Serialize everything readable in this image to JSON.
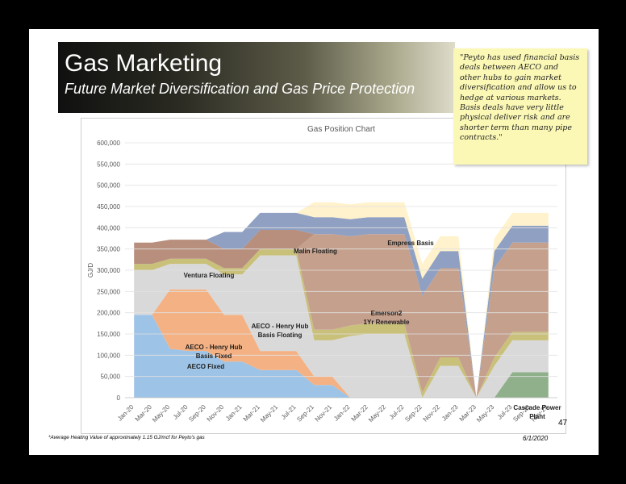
{
  "slide": {
    "title": "Gas Marketing",
    "subtitle": "Future Market Diversification and Gas Price Protection",
    "note": "\"Peyto has used financial basis deals between AECO and other hubs to gain market diversification and allow us to hedge at various markets. Basis deals have very little physical deliver risk and are shorter term than many pipe contracts.\"",
    "page_number": "47",
    "footnote": "*Average Heating Value of approximately 1.15 GJ/mcf for Peyto's gas",
    "date": "6/1/2020"
  },
  "chart_data": {
    "type": "area",
    "title": "Gas Position Chart",
    "ylabel": "GJ/D",
    "xlabel": "",
    "ylim": [
      0,
      600000
    ],
    "yticks": [
      0,
      50000,
      100000,
      150000,
      200000,
      250000,
      300000,
      350000,
      400000,
      450000,
      500000,
      550000,
      600000
    ],
    "ytick_labels": [
      "0",
      "50,000",
      "100,000",
      "150,000",
      "200,000",
      "250,000",
      "300,000",
      "350,000",
      "400,000",
      "450,000",
      "500,000",
      "550,000",
      "600,000"
    ],
    "x": [
      "Jan-20",
      "Mar-20",
      "May-20",
      "Jul-20",
      "Sep-20",
      "Nov-20",
      "Jan-21",
      "Mar-21",
      "May-21",
      "Jul-21",
      "Sep-21",
      "Nov-21",
      "Jan-22",
      "Mar-22",
      "May-22",
      "Jul-22",
      "Sep-22",
      "Nov-22",
      "Jan-23",
      "Mar-23",
      "May-23",
      "Jul-23",
      "Sep-23",
      "Nov-23"
    ],
    "stacked": true,
    "grid": true,
    "legend": "none",
    "series": [
      {
        "name": "AECO Fixed",
        "color": "#9dc3e6",
        "values": [
          195000,
          195000,
          115000,
          110000,
          110000,
          85000,
          85000,
          65000,
          65000,
          65000,
          30000,
          30000,
          0,
          0,
          0,
          0,
          0,
          0,
          0,
          0,
          0,
          0,
          0,
          0
        ]
      },
      {
        "name": "AECO - Henry Hub Basis Fixed",
        "color": "#f4b183",
        "values": [
          0,
          0,
          140000,
          145000,
          145000,
          110000,
          110000,
          45000,
          45000,
          45000,
          20000,
          20000,
          0,
          0,
          0,
          0,
          0,
          0,
          0,
          0,
          0,
          0,
          0,
          0
        ]
      },
      {
        "name": "Cascade Power Plant",
        "color": "#8fb08a",
        "values": [
          0,
          0,
          0,
          0,
          0,
          0,
          0,
          0,
          0,
          0,
          0,
          0,
          0,
          0,
          0,
          0,
          0,
          0,
          0,
          0,
          0,
          60000,
          60000,
          60000
        ]
      },
      {
        "name": "AECO - Henry Hub Basis Floating",
        "color": "#d9d9d9",
        "values": [
          105000,
          105000,
          60000,
          60000,
          60000,
          95000,
          95000,
          225000,
          225000,
          225000,
          85000,
          85000,
          145000,
          150000,
          150000,
          150000,
          0,
          75000,
          75000,
          0,
          75000,
          75000,
          75000,
          75000
        ]
      },
      {
        "name": "",
        "color": "#c9c07a",
        "values": [
          15000,
          15000,
          12000,
          12000,
          12000,
          15000,
          15000,
          15000,
          15000,
          15000,
          25000,
          25000,
          25000,
          25000,
          25000,
          25000,
          12000,
          20000,
          20000,
          0,
          20000,
          20000,
          20000,
          20000
        ]
      },
      {
        "name": "Emerson2 1Yr Renewable",
        "color": "#c5a08d",
        "values": [
          0,
          0,
          0,
          0,
          0,
          0,
          0,
          0,
          0,
          0,
          225000,
          225000,
          210000,
          210000,
          210000,
          210000,
          228000,
          210000,
          210000,
          0,
          210000,
          210000,
          210000,
          210000
        ]
      },
      {
        "name": "Ventura Floating",
        "color": "#b88e7c",
        "values": [
          50000,
          50000,
          45000,
          45000,
          45000,
          45000,
          45000,
          45000,
          45000,
          45000,
          0,
          0,
          0,
          0,
          0,
          0,
          0,
          0,
          0,
          0,
          0,
          0,
          0,
          0
        ]
      },
      {
        "name": "Malin Floating",
        "color": "#8fa0c2",
        "values": [
          0,
          0,
          0,
          0,
          0,
          40000,
          40000,
          40000,
          40000,
          40000,
          40000,
          40000,
          40000,
          40000,
          40000,
          40000,
          40000,
          40000,
          40000,
          0,
          40000,
          40000,
          40000,
          40000
        ]
      },
      {
        "name": "Empress Basis",
        "color": "#fff2cc",
        "values": [
          0,
          0,
          0,
          0,
          0,
          0,
          0,
          0,
          0,
          0,
          35000,
          35000,
          35000,
          35000,
          35000,
          35000,
          35000,
          35000,
          35000,
          0,
          30000,
          30000,
          30000,
          30000
        ]
      }
    ],
    "annotations": [
      {
        "label": "AECO Fixed",
        "text": [
          "AECO Fixed"
        ]
      },
      {
        "label": "AECO - Henry Hub Basis Fixed",
        "text": [
          "AECO - Henry Hub",
          "Basis Fixed"
        ]
      },
      {
        "label": "AECO - Henry Hub Basis Floating",
        "text": [
          "AECO - Henry Hub",
          "Basis Floating"
        ]
      },
      {
        "label": "Ventura Floating",
        "text": [
          "Ventura Floating"
        ]
      },
      {
        "label": "Malin Floating",
        "text": [
          "Malin Floating"
        ]
      },
      {
        "label": "Empress Basis",
        "text": [
          "Empress Basis"
        ]
      },
      {
        "label": "Emerson2 1Yr Renewable",
        "text": [
          "Emerson2",
          "1Yr Renewable"
        ]
      },
      {
        "label": "Cascade Power Plant",
        "text": [
          "Cascade Power",
          "Plant"
        ]
      }
    ]
  }
}
